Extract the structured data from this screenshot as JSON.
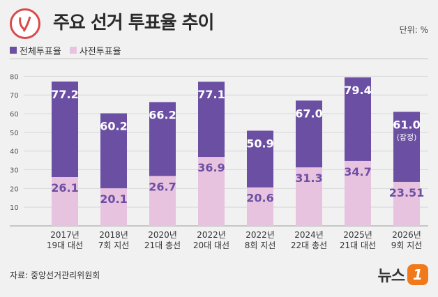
{
  "header": {
    "title": "주요 선거 투표율 추이",
    "unit": "단위: %"
  },
  "legend": [
    {
      "label": "전체투표율",
      "color": "#6b4fa3"
    },
    {
      "label": "사전투표율",
      "color": "#e8c3df"
    }
  ],
  "chart_data": {
    "type": "bar",
    "categories": [
      "2017년\n19대 대선",
      "2018년\n7회 지선",
      "2020년\n21대 총선",
      "2022년\n20대 대선",
      "2022년\n8회 지선",
      "2024년\n22대 총선",
      "2025년\n21대 대선",
      "2026년\n9회 지선"
    ],
    "series": [
      {
        "name": "전체투표율",
        "values": [
          77.2,
          60.2,
          66.2,
          77.1,
          50.9,
          67.0,
          79.4,
          61.0
        ],
        "labels": [
          "77.2",
          "60.2",
          "66.2",
          "77.1",
          "50.9",
          "67.0",
          "79.4",
          "61.0"
        ],
        "color": "#6b4fa3"
      },
      {
        "name": "사전투표율",
        "values": [
          26.1,
          20.1,
          26.7,
          36.9,
          20.6,
          31.3,
          34.7,
          23.51
        ],
        "labels": [
          "26.1",
          "20.1",
          "26.7",
          "36.9",
          "20.6",
          "31.3",
          "34.7",
          "23.51"
        ],
        "color": "#e8c3df"
      }
    ],
    "notes": [
      "",
      "",
      "",
      "",
      "",
      "",
      "",
      "(잠정)"
    ],
    "yticks": [
      10,
      20,
      30,
      40,
      50,
      60,
      70,
      80
    ],
    "ylim": [
      0,
      85
    ],
    "grid": true,
    "legend_position": "top-left"
  },
  "footer": {
    "source": "자료: 중앙선거관리위원회",
    "logo_text": "뉴스",
    "logo_mark": "1"
  }
}
